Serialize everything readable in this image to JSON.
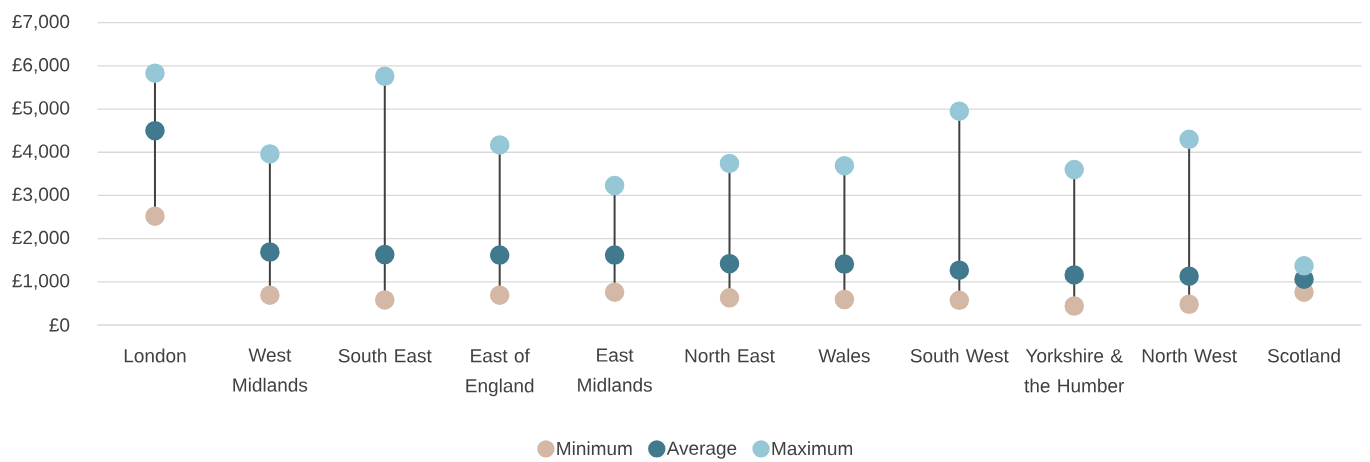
{
  "chart_data": {
    "type": "scatter",
    "categories": [
      "London",
      "West Midlands",
      "South East",
      "East of England",
      "East Midlands",
      "North East",
      "Wales",
      "South West",
      "Yorkshire & the Humber",
      "North West",
      "Scotland"
    ],
    "series": [
      {
        "name": "Minimum",
        "color": "#d3b8a5",
        "values": [
          2520,
          690,
          580,
          690,
          760,
          630,
          590,
          570,
          440,
          480,
          760
        ]
      },
      {
        "name": "Average",
        "color": "#41798e",
        "values": [
          4500,
          1690,
          1630,
          1620,
          1620,
          1420,
          1410,
          1270,
          1160,
          1130,
          1060
        ]
      },
      {
        "name": "Maximum",
        "color": "#96c7d6",
        "values": [
          5830,
          3960,
          5760,
          4170,
          3230,
          3740,
          3690,
          4950,
          3600,
          4300,
          1370
        ]
      }
    ],
    "ylim": [
      0,
      7000
    ],
    "yticks": [
      {
        "value": 0,
        "label": "£0"
      },
      {
        "value": 1000,
        "label": "£1,000"
      },
      {
        "value": 2000,
        "label": "£2,000"
      },
      {
        "value": 3000,
        "label": "£3,000"
      },
      {
        "value": 4000,
        "label": "£4,000"
      },
      {
        "value": 5000,
        "label": "£5,000"
      },
      {
        "value": 6000,
        "label": "£6,000"
      },
      {
        "value": 7000,
        "label": "£7,000"
      }
    ],
    "grid": "y",
    "legend": "bottom",
    "marker": "circle"
  }
}
